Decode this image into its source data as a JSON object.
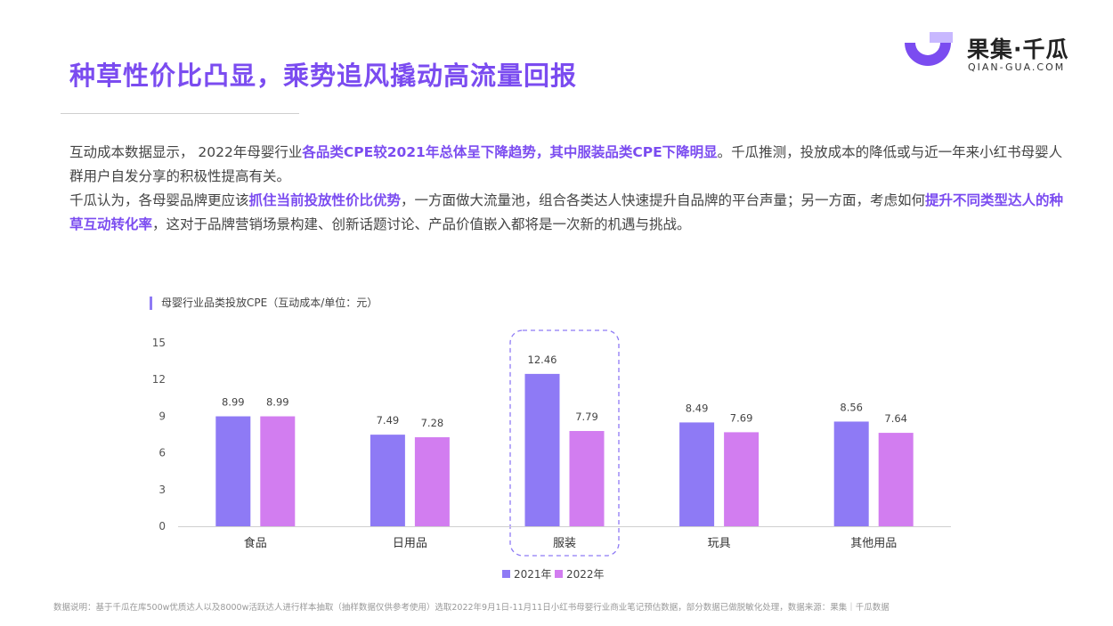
{
  "header": {
    "title": "种草性价比凸显，乘势追风撬动高流量回报"
  },
  "logo": {
    "cn": "果集·千瓜",
    "en": "QIAN-GUA.COM"
  },
  "body": {
    "p1_a": "互动成本数据显示， 2022年母婴行业",
    "p1_hl": "各品类CPE较2021年总体呈下降趋势，其中服装品类CPE下降明显",
    "p1_b": "。千瓜推测，投放成本的降低或与近一年来小红书母婴人群用户自发分享的积极性提高有关。",
    "p2_a": "千瓜认为，各母婴品牌更应该",
    "p2_hl1": "抓住当前投放性价比优势",
    "p2_b": "，一方面做大流量池，组合各类达人快速提升自品牌的平台声量；另一方面，考虑如何",
    "p2_hl2": "提升不同类型达人的种草互动转化率",
    "p2_c": "，这对于品牌营销场景构建、创新话题讨论、产品价值嵌入都将是一次新的机遇与挑战。"
  },
  "chart_title": "母婴行业品类投放CPE（互动成本/单位：元）",
  "chart_data": {
    "type": "bar",
    "categories": [
      "食品",
      "日用品",
      "服装",
      "玩具",
      "其他用品"
    ],
    "series": [
      {
        "name": "2021年",
        "values": [
          8.99,
          7.49,
          12.46,
          8.49,
          8.56
        ],
        "color": "#8e7af5"
      },
      {
        "name": "2022年",
        "values": [
          8.99,
          7.28,
          7.79,
          7.69,
          7.64
        ],
        "color": "#d27df0"
      }
    ],
    "yticks": [
      0,
      3,
      6,
      9,
      12,
      15
    ],
    "ylim": [
      0,
      15
    ],
    "highlight_category": "服装",
    "legend_position": "bottom-center",
    "grid": false
  },
  "footnote": "数据说明：基于千瓜在库500w优质达人以及8000w活跃达人进行样本抽取（抽样数据仅供参考使用）选取2022年9月1日-11月11日小红书母婴行业商业笔记预估数据，部分数据已做脱敏化处理，数据来源：果集｜千瓜数据"
}
